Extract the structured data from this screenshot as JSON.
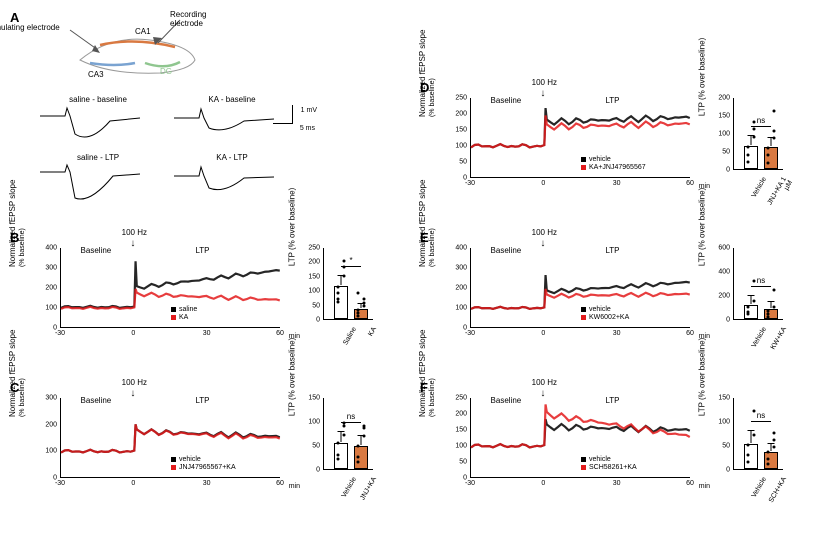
{
  "panelA": {
    "labels": {
      "stim": "Stimulating electrode",
      "rec": "Recording electrode",
      "ca1": "CA1",
      "ca3": "CA3",
      "dg": "DG"
    },
    "colors": {
      "ca1": "#d97941",
      "ca3": "#7aa3d1",
      "dg": "#8fc68f",
      "outline": "#999999"
    },
    "traces": [
      {
        "label": "saline - baseline"
      },
      {
        "label": "KA - baseline"
      },
      {
        "label": "saline - LTP"
      },
      {
        "label": "KA - LTP"
      }
    ],
    "scale": {
      "v": "1 mV",
      "h": "5 ms"
    }
  },
  "panelB": {
    "timecourse": {
      "ylabel": "Normalized fEPSP slope",
      "ylabel2": "(% baseline)",
      "xlim": [
        -30,
        60
      ],
      "ylim": [
        0,
        400
      ],
      "ytick_step": 100,
      "xticks": [
        -30,
        0,
        30,
        60
      ],
      "x_unit": "min",
      "baseline_label": "Baseline",
      "ltp_label": "LTP",
      "hz_label": "100 Hz",
      "series": [
        {
          "name": "saline",
          "color": "#000000",
          "baseline_mean": 105,
          "ltp_start": 200,
          "ltp_end": 290
        },
        {
          "name": "KA",
          "color": "#e31b1c",
          "baseline_mean": 100,
          "ltp_start": 170,
          "ltp_end": 140
        }
      ]
    },
    "bar": {
      "ylabel": "LTP (% over baseline)",
      "ylim": [
        0,
        250
      ],
      "ytick_step": 50,
      "bars": [
        {
          "label": "Saline",
          "value": 115,
          "err": 30,
          "color": "#ffffff",
          "scatter": [
            60,
            180,
            70,
            150,
            90,
            200,
            110
          ]
        },
        {
          "label": "KA",
          "value": 35,
          "err": 15,
          "color": "#d97941",
          "scatter": [
            10,
            70,
            20,
            55,
            30,
            45,
            90
          ]
        }
      ],
      "sig": "*"
    }
  },
  "panelC": {
    "timecourse": {
      "ylabel": "Normalized fEPSP slope",
      "ylabel2": "(% baseline)",
      "xlim": [
        -30,
        60
      ],
      "ylim": [
        0,
        300
      ],
      "ytick_step": 100,
      "xticks": [
        -30,
        0,
        30,
        60
      ],
      "x_unit": "min",
      "baseline_label": "Baseline",
      "ltp_label": "LTP",
      "hz_label": "100 Hz",
      "series": [
        {
          "name": "vehicle",
          "color": "#000000",
          "baseline_mean": 100,
          "ltp_start": 175,
          "ltp_end": 155
        },
        {
          "name": "JNJ47965567+KA",
          "color": "#e31b1c",
          "baseline_mean": 100,
          "ltp_start": 175,
          "ltp_end": 150
        }
      ]
    },
    "bar": {
      "ylabel": "LTP (% over baseline)",
      "ylim": [
        0,
        150
      ],
      "ytick_step": 50,
      "bars": [
        {
          "label": "Vehicle",
          "value": 55,
          "err": 20,
          "color": "#ffffff",
          "scatter": [
            20,
            90,
            30,
            70,
            55,
            95
          ]
        },
        {
          "label": "JNJ+KA",
          "value": 48,
          "err": 18,
          "color": "#d97941",
          "scatter": [
            15,
            85,
            25,
            68,
            48,
            90
          ]
        }
      ],
      "sig": "ns"
    }
  },
  "panelD": {
    "timecourse": {
      "ylabel": "Normalized fEPSP slope",
      "ylabel2": "(% baseline)",
      "xlim": [
        -30,
        60
      ],
      "ylim": [
        0,
        250
      ],
      "ytick_step": 50,
      "xticks": [
        -30,
        0,
        30,
        60
      ],
      "x_unit": "min",
      "baseline_label": "Baseline",
      "ltp_label": "LTP",
      "hz_label": "100 Hz",
      "series": [
        {
          "name": "vehicle",
          "color": "#000000",
          "baseline_mean": 100,
          "ltp_start": 175,
          "ltp_end": 190
        },
        {
          "name": "KA+JNJ47965567",
          "color": "#e31b1c",
          "baseline_mean": 100,
          "ltp_start": 160,
          "ltp_end": 170
        }
      ]
    },
    "bar": {
      "ylabel": "LTP (% over baseline)",
      "ylim": [
        0,
        200
      ],
      "ytick_step": 50,
      "bars": [
        {
          "label": "Vehicle",
          "value": 65,
          "err": 25,
          "color": "#ffffff",
          "scatter": [
            20,
            110,
            40,
            90,
            60,
            130
          ]
        },
        {
          "label": "JNJ+KA\n1 µM",
          "value": 62,
          "err": 22,
          "color": "#d97941",
          "scatter": [
            18,
            105,
            38,
            85,
            58,
            160
          ]
        }
      ],
      "sig": "ns"
    }
  },
  "panelE": {
    "timecourse": {
      "ylabel": "Normalized fEPSP slope",
      "ylabel2": "(% baseline)",
      "xlim": [
        -30,
        60
      ],
      "ylim": [
        0,
        400
      ],
      "ytick_step": 100,
      "xticks": [
        -30,
        0,
        30,
        60
      ],
      "x_unit": "min",
      "baseline_label": "Baseline",
      "ltp_label": "LTP",
      "hz_label": "100 Hz",
      "series": [
        {
          "name": "vehicle",
          "color": "#000000",
          "baseline_mean": 100,
          "ltp_start": 180,
          "ltp_end": 230
        },
        {
          "name": "KW6002+KA",
          "color": "#e31b1c",
          "baseline_mean": 100,
          "ltp_start": 160,
          "ltp_end": 170
        }
      ]
    },
    "bar": {
      "ylabel": "LTP (% over baseline)",
      "ylim": [
        0,
        600
      ],
      "ytick_step": 200,
      "bars": [
        {
          "label": "Vehicle",
          "value": 120,
          "err": 60,
          "color": "#ffffff",
          "scatter": [
            40,
            320,
            60,
            150,
            100
          ]
        },
        {
          "label": "KW+KA",
          "value": 85,
          "err": 45,
          "color": "#d97941",
          "scatter": [
            20,
            240,
            45,
            100,
            70
          ]
        }
      ],
      "sig": "ns"
    }
  },
  "panelF": {
    "timecourse": {
      "ylabel": "Normalized fEPSP slope",
      "ylabel2": "(% baseline)",
      "xlim": [
        -30,
        60
      ],
      "ylim": [
        0,
        250
      ],
      "ytick_step": 50,
      "xticks": [
        -30,
        0,
        30,
        60
      ],
      "x_unit": "min",
      "baseline_label": "Baseline",
      "ltp_label": "LTP",
      "hz_label": "100 Hz",
      "series": [
        {
          "name": "vehicle",
          "color": "#000000",
          "baseline_mean": 100,
          "ltp_start": 160,
          "ltp_end": 150
        },
        {
          "name": "SCH58261+KA",
          "color": "#e31b1c",
          "baseline_mean": 100,
          "ltp_start": 200,
          "ltp_end": 130
        }
      ]
    },
    "bar": {
      "ylabel": "LTP (% over baseline)",
      "ylim": [
        0,
        150
      ],
      "ytick_step": 50,
      "bars": [
        {
          "label": "Vehicle",
          "value": 52,
          "err": 25,
          "color": "#ffffff",
          "scatter": [
            15,
            120,
            30,
            70,
            50
          ]
        },
        {
          "label": "SCH+KA",
          "value": 35,
          "err": 15,
          "color": "#d97941",
          "scatter": [
            10,
            75,
            20,
            45,
            35,
            60
          ]
        }
      ],
      "sig": "ns"
    }
  }
}
